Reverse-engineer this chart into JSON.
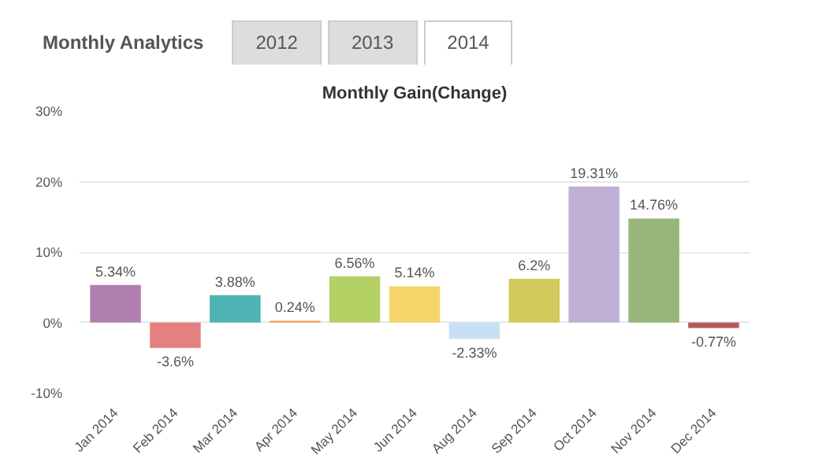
{
  "chart_data": {
    "type": "bar",
    "title": "Monthly Gain(Change)",
    "annotations": [
      "Monthly Analytics",
      "2012",
      "2013",
      "2014"
    ],
    "categories": [
      "Jan 2014",
      "Feb 2014",
      "Mar 2014",
      "Apr 2014",
      "May 2014",
      "Jun 2014",
      "Aug 2014",
      "Sep 2014",
      "Oct 2014",
      "Nov 2014",
      "Dec 2014"
    ],
    "values": [
      5.34,
      -3.6,
      3.88,
      0.24,
      6.56,
      5.14,
      -2.33,
      6.2,
      19.31,
      14.76,
      -0.77
    ],
    "value_labels": [
      "5.34%",
      "-3.6%",
      "3.88%",
      "0.24%",
      "6.56%",
      "5.14%",
      "-2.33%",
      "6.2%",
      "19.31%",
      "14.76%",
      "-0.77%"
    ],
    "colors": [
      "#b07fb0",
      "#e58080",
      "#4db3b3",
      "#f0a060",
      "#b5d165",
      "#f5d56a",
      "#c8e0f5",
      "#d1c95a",
      "#c0b0d5",
      "#98b57a",
      "#b85a5a"
    ],
    "ylim": [
      -10,
      30
    ],
    "yticks": [
      {
        "value": -10,
        "label": "-10%"
      },
      {
        "value": 0,
        "label": "0%"
      },
      {
        "value": 10,
        "label": "10%"
      },
      {
        "value": 20,
        "label": "20%"
      },
      {
        "value": 30,
        "label": "30%"
      }
    ],
    "grid": "y"
  }
}
